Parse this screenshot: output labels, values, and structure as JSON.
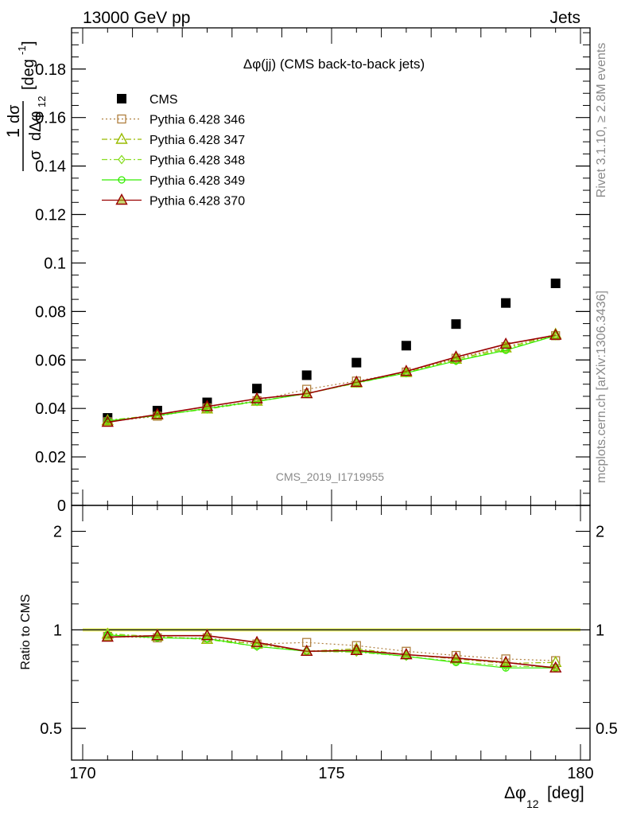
{
  "header": {
    "energy_label": "13000 GeV pp",
    "category_label": "Jets"
  },
  "side_labels": {
    "rivet": "Rivet 3.1.10, ≥ 2.8M events",
    "mcplots": "mcplots.cern.ch [arXiv:1306.3436]"
  },
  "analysis_tag": "CMS_2019_I1719955",
  "chart_data": [
    {
      "type": "scatter",
      "panel": "main",
      "title": "Δφ(jj) (CMS back-to-back jets)",
      "xlabel": "Δφ_12 [deg]",
      "ylabel": "1/σ dσ/dΔφ_12 [deg^-1]",
      "xlim": [
        170,
        180
      ],
      "ylim": [
        0,
        0.197
      ],
      "y_ticks": [
        0,
        0.02,
        0.04,
        0.06,
        0.08,
        0.1,
        0.12,
        0.14,
        0.16,
        0.18
      ],
      "y_tick_labels": [
        "0",
        "0.02",
        "0.04",
        "0.06",
        "0.08",
        "0.1",
        "0.12",
        "0.14",
        "0.16",
        "0.18"
      ],
      "legend_position": "top-left",
      "x": [
        170.5,
        171.5,
        172.5,
        173.5,
        174.5,
        175.5,
        176.5,
        177.5,
        178.5,
        179.5
      ],
      "series": [
        {
          "name": "CMS",
          "style": "data",
          "color": "#000000",
          "marker": "square",
          "values": [
            0.0361,
            0.0391,
            0.0425,
            0.0482,
            0.0537,
            0.0589,
            0.0659,
            0.0748,
            0.0835,
            0.0916
          ]
        },
        {
          "name": "Pythia 6.428 346",
          "style": "dotted",
          "color": "#b08040",
          "marker": "open-square",
          "values": [
            0.0345,
            0.0368,
            0.0402,
            0.0432,
            0.0479,
            0.0513,
            0.055,
            0.0607,
            0.0655,
            0.07
          ]
        },
        {
          "name": "Pythia 6.428 347",
          "style": "dashdot",
          "color": "#99bb00",
          "marker": "open-triangle",
          "values": [
            0.035,
            0.0373,
            0.0398,
            0.043,
            0.0461,
            0.0505,
            0.0548,
            0.0603,
            0.065,
            0.0706
          ]
        },
        {
          "name": "Pythia 6.428 348",
          "style": "dashdot",
          "color": "#88dd22",
          "marker": "open-diamond",
          "values": [
            0.0352,
            0.0372,
            0.0397,
            0.0428,
            0.0462,
            0.0504,
            0.0547,
            0.0597,
            0.0645,
            0.07
          ]
        },
        {
          "name": "Pythia 6.428 349",
          "style": "solid",
          "color": "#33ee00",
          "marker": "open-circle",
          "values": [
            0.0349,
            0.037,
            0.04,
            0.0429,
            0.0461,
            0.0506,
            0.0546,
            0.0596,
            0.064,
            0.07
          ]
        },
        {
          "name": "Pythia 6.428 370",
          "style": "solid",
          "color": "#990000",
          "marker": "open-triangle",
          "values": [
            0.0343,
            0.0375,
            0.0408,
            0.044,
            0.0461,
            0.0508,
            0.0553,
            0.0612,
            0.0665,
            0.0702
          ]
        }
      ]
    },
    {
      "type": "line",
      "panel": "ratio",
      "ylabel": "Ratio to CMS",
      "xlabel": "Δφ_12 [deg]",
      "xlim": [
        170,
        180
      ],
      "ylim": [
        0.4,
        2.4
      ],
      "y_scale": "log",
      "y_ticks": [
        0.5,
        1,
        2
      ],
      "y_tick_labels": [
        "0.5",
        "1",
        "2"
      ],
      "x_ticks": [
        170,
        175,
        180
      ],
      "x_tick_labels": [
        "170",
        "175",
        "180"
      ],
      "x": [
        170.5,
        171.5,
        172.5,
        173.5,
        174.5,
        175.5,
        176.5,
        177.5,
        178.5,
        179.5
      ],
      "series": [
        {
          "name": "CMS",
          "style": "band",
          "color": "#e8f560",
          "values": [
            1,
            1,
            1,
            1,
            1,
            1,
            1,
            1,
            1,
            1
          ]
        },
        {
          "name": "Pythia 6.428 346",
          "style": "dotted",
          "color": "#b08040",
          "marker": "open-square",
          "values": [
            0.955,
            0.945,
            0.945,
            0.905,
            0.915,
            0.895,
            0.86,
            0.835,
            0.815,
            0.805
          ]
        },
        {
          "name": "Pythia 6.428 347",
          "style": "dashdot",
          "color": "#99bb00",
          "marker": "open-triangle",
          "values": [
            0.97,
            0.955,
            0.935,
            0.905,
            0.86,
            0.875,
            0.84,
            0.815,
            0.79,
            0.795
          ]
        },
        {
          "name": "Pythia 6.428 348",
          "style": "dashdot",
          "color": "#88dd22",
          "marker": "open-diamond",
          "values": [
            0.975,
            0.95,
            0.935,
            0.89,
            0.86,
            0.855,
            0.83,
            0.8,
            0.775,
            0.77
          ]
        },
        {
          "name": "Pythia 6.428 349",
          "style": "solid",
          "color": "#33ee00",
          "marker": "open-circle",
          "values": [
            0.965,
            0.945,
            0.94,
            0.89,
            0.86,
            0.86,
            0.83,
            0.795,
            0.765,
            0.765
          ]
        },
        {
          "name": "Pythia 6.428 370",
          "style": "solid",
          "color": "#990000",
          "marker": "open-triangle",
          "values": [
            0.95,
            0.96,
            0.96,
            0.915,
            0.86,
            0.865,
            0.84,
            0.82,
            0.795,
            0.765
          ]
        }
      ]
    }
  ]
}
